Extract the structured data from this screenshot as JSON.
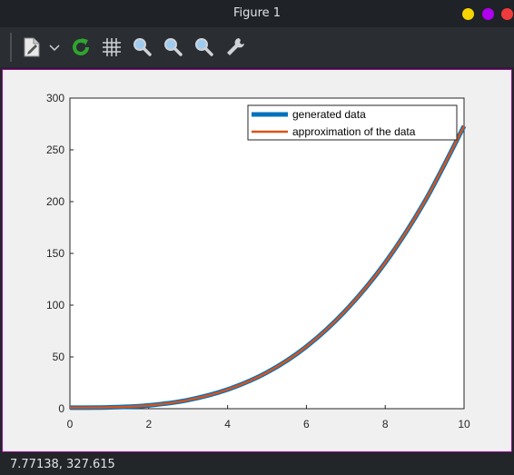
{
  "window": {
    "title": "Figure 1",
    "buttons": [
      {
        "name": "minimize",
        "color": "#f5d400"
      },
      {
        "name": "maximize",
        "color": "#b100f0"
      },
      {
        "name": "close",
        "color": "#ef3b3b"
      }
    ]
  },
  "toolbar": {
    "items": [
      {
        "name": "new-figure-icon",
        "icon": "document-new"
      },
      {
        "name": "dropdown-chevron-icon",
        "icon": "chevron-down"
      },
      {
        "name": "refresh-icon",
        "icon": "refresh"
      },
      {
        "name": "grid-icon",
        "icon": "grid"
      },
      {
        "name": "zoom-in-icon",
        "icon": "magnifier"
      },
      {
        "name": "zoom-out-icon",
        "icon": "magnifier"
      },
      {
        "name": "zoom-reset-icon",
        "icon": "magnifier"
      },
      {
        "name": "settings-wrench-icon",
        "icon": "wrench"
      }
    ]
  },
  "status": {
    "coords": "7.77138,  327.615"
  },
  "chart_data": {
    "type": "line",
    "title": "",
    "xlabel": "",
    "ylabel": "",
    "xlim": [
      0,
      10
    ],
    "ylim": [
      0,
      300
    ],
    "xticks": [
      0,
      2,
      4,
      6,
      8,
      10
    ],
    "yticks": [
      0,
      50,
      100,
      150,
      200,
      250,
      300
    ],
    "grid": false,
    "legend_position": "top-right",
    "x": [
      0,
      1,
      2,
      3,
      4,
      5,
      6,
      7,
      8,
      9,
      10
    ],
    "series": [
      {
        "name": "generated data",
        "color": "#0072bd",
        "values": [
          1,
          1.3,
          3.2,
          8.4,
          18.5,
          35,
          60,
          95,
          141,
          200,
          273
        ]
      },
      {
        "name": "approximation of the data",
        "color": "#d95319",
        "values": [
          1,
          1.3,
          3.2,
          8.4,
          18.5,
          35,
          60,
          95,
          141,
          200,
          273
        ]
      }
    ]
  }
}
